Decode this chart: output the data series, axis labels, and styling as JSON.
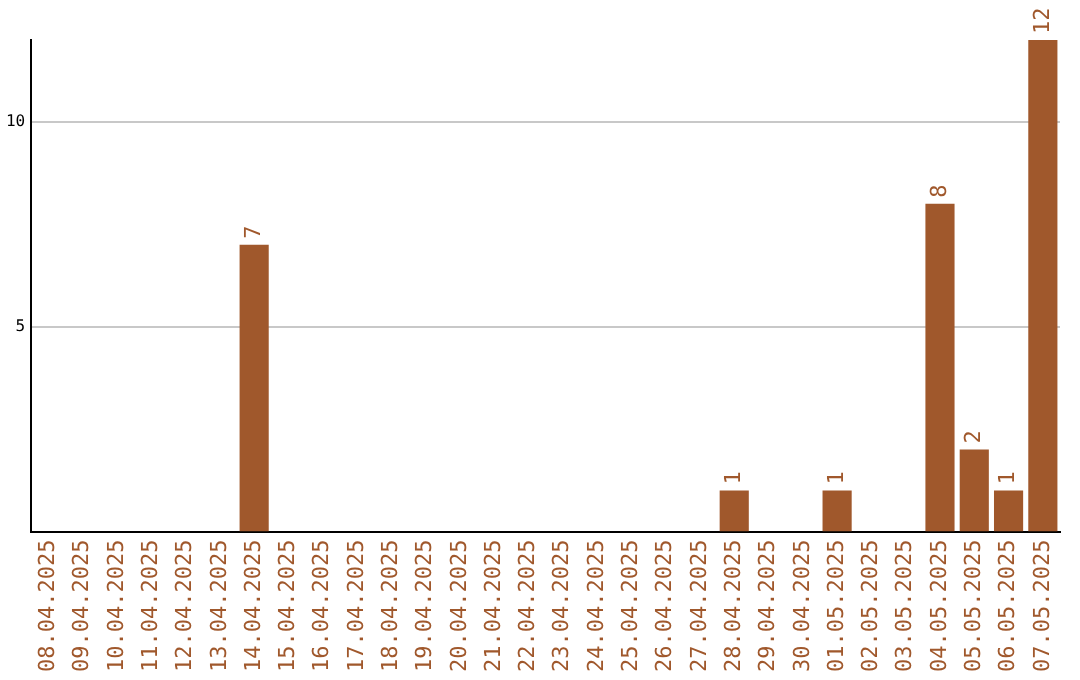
{
  "chart_data": {
    "type": "bar",
    "categories": [
      "08.04.2025",
      "09.04.2025",
      "10.04.2025",
      "11.04.2025",
      "12.04.2025",
      "13.04.2025",
      "14.04.2025",
      "15.04.2025",
      "16.04.2025",
      "17.04.2025",
      "18.04.2025",
      "19.04.2025",
      "20.04.2025",
      "21.04.2025",
      "22.04.2025",
      "23.04.2025",
      "24.04.2025",
      "25.04.2025",
      "26.04.2025",
      "27.04.2025",
      "28.04.2025",
      "29.04.2025",
      "30.04.2025",
      "01.05.2025",
      "02.05.2025",
      "03.05.2025",
      "04.05.2025",
      "05.05.2025",
      "06.05.2025",
      "07.05.2025"
    ],
    "values": [
      0,
      0,
      0,
      0,
      0,
      0,
      7,
      0,
      0,
      0,
      0,
      0,
      0,
      0,
      0,
      0,
      0,
      0,
      0,
      0,
      1,
      0,
      0,
      1,
      0,
      0,
      8,
      2,
      1,
      12
    ],
    "value_labels": [
      null,
      null,
      null,
      null,
      null,
      null,
      "7",
      null,
      null,
      null,
      null,
      null,
      null,
      null,
      null,
      null,
      null,
      null,
      null,
      null,
      "1",
      null,
      null,
      "1",
      null,
      null,
      "8",
      "2",
      "1",
      "12"
    ],
    "color": "#a0582c",
    "ylim": [
      0,
      12
    ],
    "yticks": [
      5,
      10
    ],
    "grid": "y",
    "legend": false
  }
}
